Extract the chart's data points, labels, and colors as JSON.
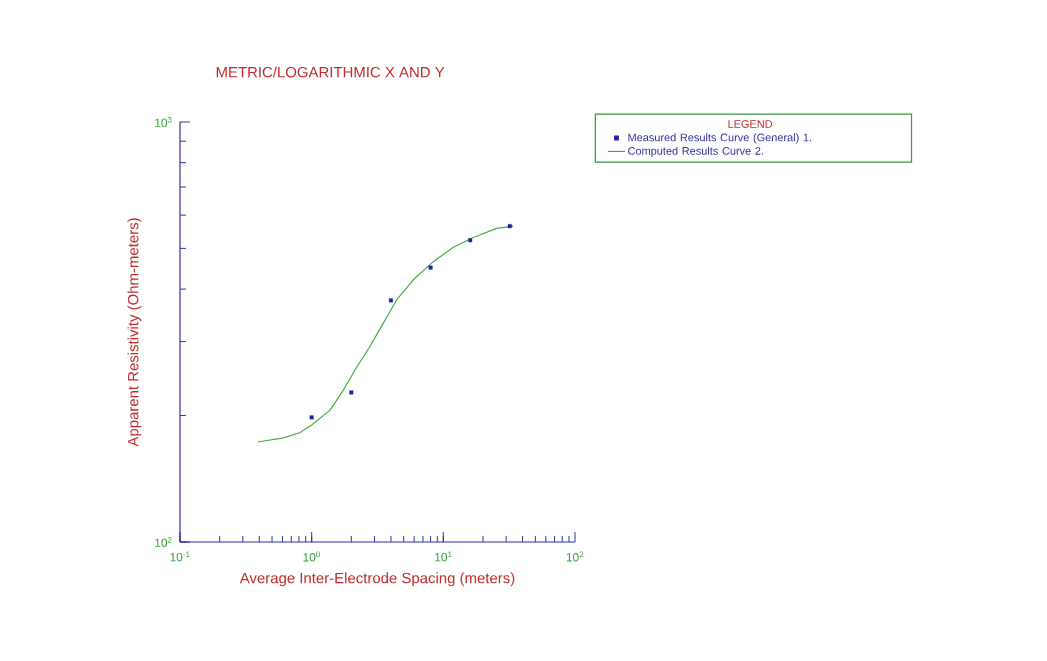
{
  "chart_data": {
    "type": "scatter",
    "title": "METRIC/LOGARITHMIC X AND Y",
    "xlabel": "Average Inter-Electrode Spacing (meters)",
    "ylabel": "Apparent Resistivity (Ohm-meters)",
    "log": "xy",
    "legend": "top right",
    "legend_title": "LEGEND",
    "xlim": [
      0.1,
      100
    ],
    "ylim": [
      100,
      1000
    ],
    "xticks": [
      {
        "value": 0.1,
        "label": "10$^{-1}$"
      },
      {
        "value": 1,
        "label": "10$^{0}$"
      },
      {
        "value": 10,
        "label": "10$^{1}$"
      },
      {
        "value": 100,
        "label": "10$^{2}$"
      }
    ],
    "yticks": [
      {
        "value": 100,
        "label": "10$^{2}$"
      },
      {
        "value": 1000,
        "label": "10$^{3}$"
      }
    ],
    "series": [
      {
        "name": "Measured Results Curve (General) 1.",
        "marker": "square",
        "color": "#2020a0",
        "x": [
          1,
          2,
          4,
          8,
          16,
          32
        ],
        "values": [
          198,
          227,
          376,
          450,
          523,
          565
        ]
      },
      {
        "name": "Computed Results Curve 2.",
        "type": "line",
        "marker": "none",
        "color": "#40b040",
        "x": [
          0.39,
          0.61,
          0.81,
          1.0,
          1.38,
          1.74,
          2.2,
          2.77,
          3.5,
          4.42,
          5.91,
          8.39,
          11.9,
          16.9,
          25.4,
          34
        ],
        "values": [
          173,
          177,
          182,
          190,
          206,
          230,
          261,
          292,
          332,
          377,
          421,
          465,
          503,
          531,
          558,
          565
        ]
      }
    ]
  }
}
